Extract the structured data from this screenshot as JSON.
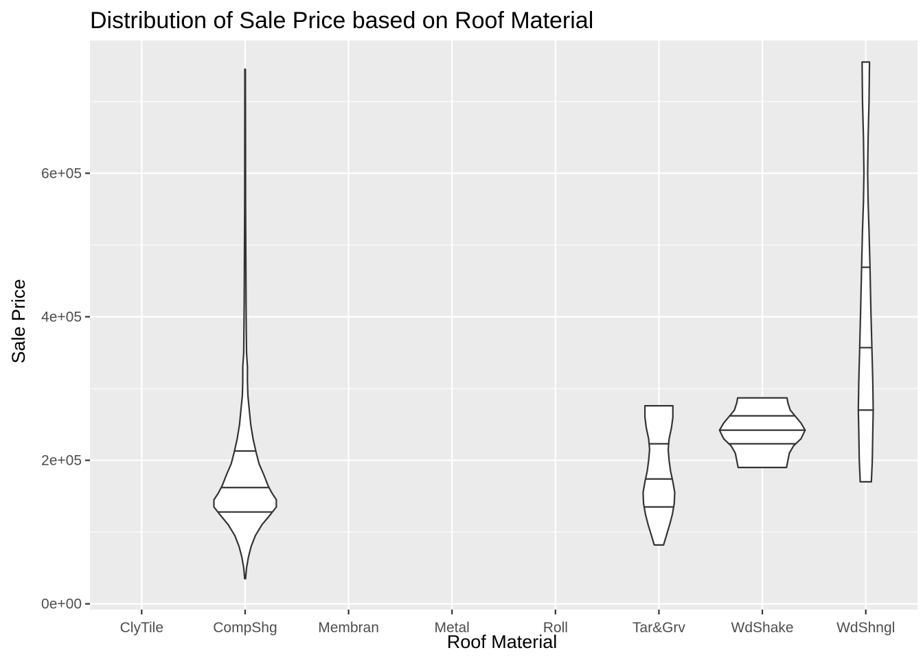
{
  "chart_data": {
    "type": "violin",
    "title": "Distribution of Sale Price based on Roof Material",
    "xlabel": "Roof Material",
    "ylabel": "Sale Price",
    "categories": [
      "ClyTile",
      "CompShg",
      "Membran",
      "Metal",
      "Roll",
      "Tar&Grv",
      "WdShake",
      "WdShngl"
    ],
    "ylim": [
      -8000,
      785000
    ],
    "yticks": [
      0,
      200000,
      400000,
      600000
    ],
    "ytick_labels": [
      "0e+00",
      "2e+05",
      "4e+05",
      "6e+05"
    ],
    "grid": true,
    "colors": {
      "panel": "#ebebeb",
      "grid": "#ffffff",
      "outline": "#333333",
      "fill": "#ffffff",
      "ticks": "#333333"
    },
    "series": [
      {
        "category": "CompShg",
        "min": 35000,
        "max": 745000,
        "quantiles": [
          128000,
          162000,
          213000
        ],
        "profile": [
          [
            35000,
            0.01
          ],
          [
            50000,
            0.03
          ],
          [
            65000,
            0.07
          ],
          [
            80000,
            0.13
          ],
          [
            95000,
            0.22
          ],
          [
            110000,
            0.36
          ],
          [
            125000,
            0.55
          ],
          [
            135000,
            0.67
          ],
          [
            145000,
            0.67
          ],
          [
            155000,
            0.57
          ],
          [
            165000,
            0.49
          ],
          [
            180000,
            0.4
          ],
          [
            195000,
            0.3
          ],
          [
            210000,
            0.24
          ],
          [
            230000,
            0.17
          ],
          [
            250000,
            0.12
          ],
          [
            270000,
            0.09
          ],
          [
            290000,
            0.06
          ],
          [
            310000,
            0.05
          ],
          [
            330000,
            0.05
          ],
          [
            350000,
            0.03
          ],
          [
            380000,
            0.025
          ],
          [
            420000,
            0.02
          ],
          [
            480000,
            0.015
          ],
          [
            560000,
            0.01
          ],
          [
            650000,
            0.008
          ],
          [
            745000,
            0.006
          ]
        ]
      },
      {
        "category": "Tar&Grv",
        "min": 82000,
        "max": 276000,
        "quantiles": [
          135000,
          174000,
          223000
        ],
        "profile": [
          [
            82000,
            0.1
          ],
          [
            95000,
            0.16
          ],
          [
            110000,
            0.23
          ],
          [
            125000,
            0.29
          ],
          [
            140000,
            0.33
          ],
          [
            155000,
            0.34
          ],
          [
            170000,
            0.3
          ],
          [
            185000,
            0.25
          ],
          [
            200000,
            0.22
          ],
          [
            215000,
            0.2
          ],
          [
            230000,
            0.22
          ],
          [
            245000,
            0.27
          ],
          [
            260000,
            0.3
          ],
          [
            276000,
            0.3
          ]
        ]
      },
      {
        "category": "WdShake",
        "min": 190000,
        "max": 287000,
        "quantiles": [
          223000,
          242000,
          262000
        ],
        "profile": [
          [
            190000,
            0.52
          ],
          [
            200000,
            0.55
          ],
          [
            210000,
            0.58
          ],
          [
            220000,
            0.67
          ],
          [
            230000,
            0.83
          ],
          [
            242000,
            0.92
          ],
          [
            252000,
            0.83
          ],
          [
            262000,
            0.7
          ],
          [
            270000,
            0.6
          ],
          [
            280000,
            0.55
          ],
          [
            287000,
            0.53
          ]
        ]
      },
      {
        "category": "WdShngl",
        "min": 170000,
        "max": 755000,
        "quantiles": [
          270000,
          357000,
          469000
        ],
        "profile": [
          [
            170000,
            0.12
          ],
          [
            200000,
            0.14
          ],
          [
            240000,
            0.15
          ],
          [
            270000,
            0.16
          ],
          [
            310000,
            0.15
          ],
          [
            360000,
            0.13
          ],
          [
            410000,
            0.11
          ],
          [
            470000,
            0.09
          ],
          [
            520000,
            0.07
          ],
          [
            560000,
            0.05
          ],
          [
            600000,
            0.04
          ],
          [
            650000,
            0.05
          ],
          [
            700000,
            0.07
          ],
          [
            755000,
            0.08
          ]
        ]
      }
    ]
  }
}
